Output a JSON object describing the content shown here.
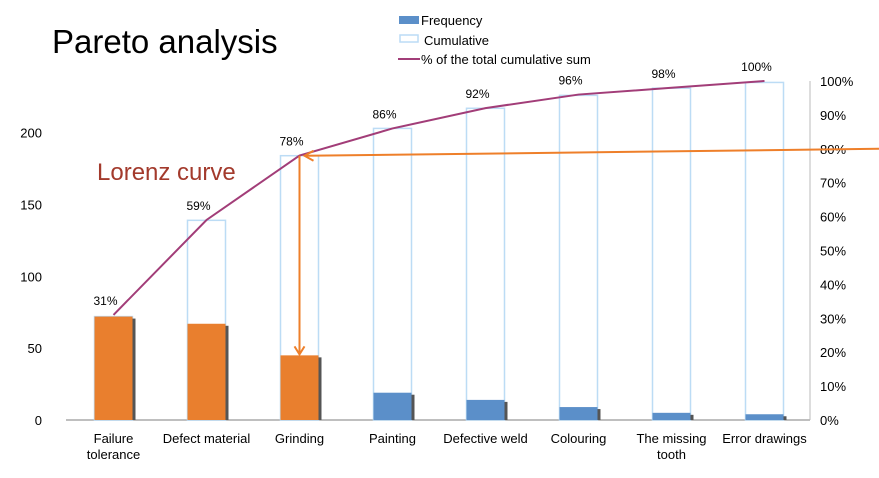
{
  "chart_data": {
    "type": "bar",
    "title": "Pareto analysis",
    "annotation": "Lorenz curve",
    "categories": [
      [
        "Failure",
        "tolerance"
      ],
      [
        "Defect material"
      ],
      [
        "Grinding"
      ],
      [
        "Painting"
      ],
      [
        "Defective weld"
      ],
      [
        "Colouring"
      ],
      [
        "The missing",
        "tooth"
      ],
      [
        "Error drawings"
      ]
    ],
    "series": [
      {
        "name": "Frequency",
        "type": "bar",
        "values": [
          72,
          67,
          45,
          19,
          14,
          9,
          5,
          4
        ]
      },
      {
        "name": "Cumulative",
        "type": "bar-outline",
        "values": [
          72,
          139,
          184,
          203,
          217,
          226,
          231,
          235
        ]
      },
      {
        "name": "% of the total cumulative sum",
        "type": "line",
        "axis": "right",
        "values": [
          31,
          59,
          78,
          86,
          92,
          96,
          98,
          100
        ],
        "labels": [
          "31%",
          "59%",
          "78%",
          "86%",
          "92%",
          "96%",
          "98%",
          "100%"
        ]
      }
    ],
    "highlighted_categories": 3,
    "left_axis": {
      "ticks": [
        0,
        50,
        100,
        150,
        200
      ],
      "ylim": [
        0,
        236
      ]
    },
    "right_axis": {
      "ticks": [
        "0%",
        "10%",
        "20%",
        "30%",
        "40%",
        "50%",
        "60%",
        "70%",
        "80%",
        "90%",
        "100%"
      ],
      "ylim": [
        0,
        100
      ]
    },
    "threshold_percent": 80,
    "legend_position": "top-center",
    "colors": {
      "frequency": "#5b8fc9",
      "highlight": "#e97f2e",
      "cumulative": "#bcdcf5",
      "line": "#a23d78",
      "arrow": "#ee7f2a",
      "annotation": "#a33a2c",
      "shadow": "#555555"
    }
  }
}
